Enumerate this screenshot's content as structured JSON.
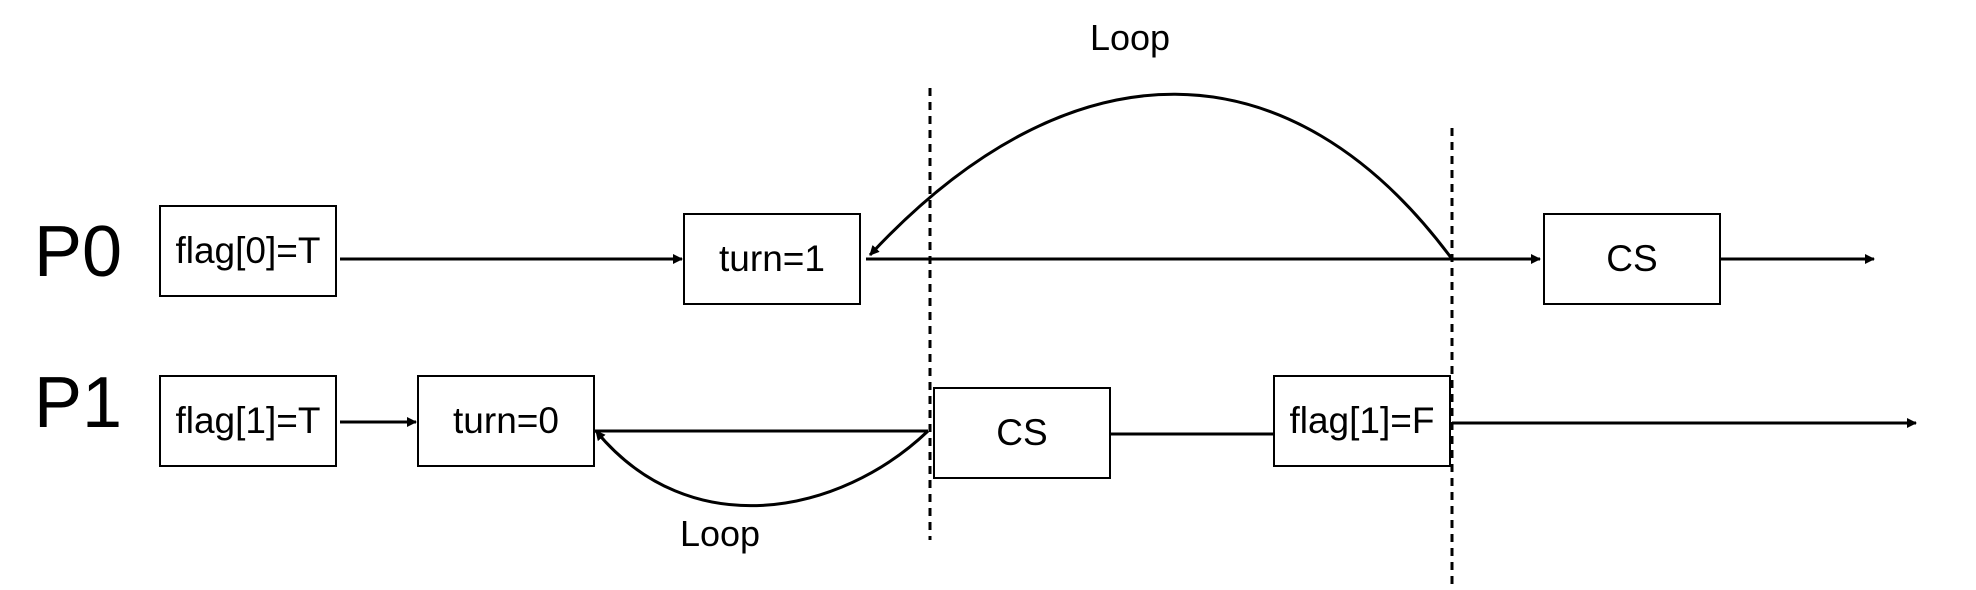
{
  "processes": {
    "p0": "P0",
    "p1": "P1"
  },
  "boxes": {
    "p0_flag": "flag[0]=T",
    "p0_turn": "turn=1",
    "p0_cs": "CS",
    "p1_flag": "flag[1]=T",
    "p1_turn": "turn=0",
    "p1_cs": "CS",
    "p1_flag_false": "flag[1]=F"
  },
  "loops": {
    "p0_loop": "Loop",
    "p1_loop": "Loop"
  }
}
